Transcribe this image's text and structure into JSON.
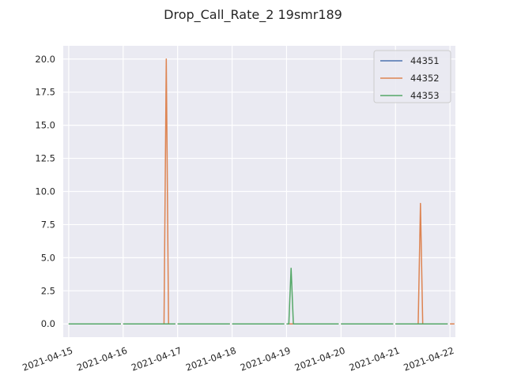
{
  "chart_data": {
    "type": "line",
    "title": "Drop_Call_Rate_2 19smr189",
    "xlabel": "",
    "ylabel": "",
    "xlim": [
      "2021-04-14 21:36",
      "2021-04-22 02:24"
    ],
    "ylim": [
      -1.0,
      21.0
    ],
    "x_ticks": [
      "2021-04-15",
      "2021-04-16",
      "2021-04-17",
      "2021-04-18",
      "2021-04-19",
      "2021-04-20",
      "2021-04-21",
      "2021-04-22"
    ],
    "y_ticks": [
      "0.0",
      "2.5",
      "5.0",
      "7.5",
      "10.0",
      "12.5",
      "15.0",
      "17.5",
      "20.0"
    ],
    "grid": true,
    "legend_position": "top-right",
    "colors": {
      "background": "#eaeaf2",
      "grid": "#ffffff"
    },
    "series": [
      {
        "name": "44351",
        "color": "#4c72b0",
        "segments": [
          [
            [
              "2021-04-15 00:00",
              0
            ],
            [
              "2021-04-15 23:00",
              0
            ]
          ],
          [
            [
              "2021-04-16 00:00",
              0
            ],
            [
              "2021-04-16 23:00",
              0
            ]
          ],
          [
            [
              "2021-04-17 00:00",
              0
            ],
            [
              "2021-04-17 23:00",
              0
            ]
          ],
          [
            [
              "2021-04-18 00:00",
              0
            ],
            [
              "2021-04-18 23:00",
              0
            ]
          ],
          [
            [
              "2021-04-19 00:00",
              0
            ],
            [
              "2021-04-19 23:00",
              0
            ]
          ],
          [
            [
              "2021-04-20 00:00",
              0
            ],
            [
              "2021-04-20 23:00",
              0
            ]
          ],
          [
            [
              "2021-04-21 00:00",
              0
            ],
            [
              "2021-04-21 23:00",
              0
            ]
          ]
        ]
      },
      {
        "name": "44352",
        "color": "#dd8452",
        "segments": [
          [
            [
              "2021-04-15 00:00",
              0
            ],
            [
              "2021-04-15 23:00",
              0
            ]
          ],
          [
            [
              "2021-04-16 00:00",
              0
            ],
            [
              "2021-04-16 18:00",
              0
            ],
            [
              "2021-04-16 19:00",
              20.0
            ],
            [
              "2021-04-16 20:00",
              0
            ],
            [
              "2021-04-16 23:00",
              0
            ]
          ],
          [
            [
              "2021-04-17 00:00",
              0
            ],
            [
              "2021-04-17 23:00",
              0
            ]
          ],
          [
            [
              "2021-04-18 00:00",
              0
            ],
            [
              "2021-04-18 23:00",
              0
            ]
          ],
          [
            [
              "2021-04-19 00:00",
              0
            ],
            [
              "2021-04-19 23:00",
              0
            ]
          ],
          [
            [
              "2021-04-20 00:00",
              0
            ],
            [
              "2021-04-20 23:00",
              0
            ]
          ],
          [
            [
              "2021-04-21 00:00",
              0
            ],
            [
              "2021-04-21 10:00",
              0
            ],
            [
              "2021-04-21 11:00",
              9.1
            ],
            [
              "2021-04-21 12:00",
              0
            ],
            [
              "2021-04-21 23:00",
              0
            ]
          ],
          [
            [
              "2021-04-22 00:00",
              0
            ],
            [
              "2021-04-22 02:00",
              0
            ]
          ]
        ]
      },
      {
        "name": "44353",
        "color": "#55a868",
        "segments": [
          [
            [
              "2021-04-15 00:00",
              0
            ],
            [
              "2021-04-15 23:00",
              0
            ]
          ],
          [
            [
              "2021-04-16 00:00",
              0
            ],
            [
              "2021-04-16 23:00",
              0
            ]
          ],
          [
            [
              "2021-04-17 00:00",
              0
            ],
            [
              "2021-04-17 23:00",
              0
            ]
          ],
          [
            [
              "2021-04-18 00:00",
              0
            ],
            [
              "2021-04-18 23:00",
              0
            ]
          ],
          [
            [
              "2021-04-19 00:00",
              0
            ],
            [
              "2021-04-19 01:00",
              0
            ],
            [
              "2021-04-19 02:00",
              4.2
            ],
            [
              "2021-04-19 03:00",
              0
            ],
            [
              "2021-04-19 23:00",
              0
            ]
          ],
          [
            [
              "2021-04-20 00:00",
              0
            ],
            [
              "2021-04-20 23:00",
              0
            ]
          ],
          [
            [
              "2021-04-21 00:00",
              0
            ],
            [
              "2021-04-21 23:00",
              0
            ]
          ]
        ]
      }
    ]
  }
}
